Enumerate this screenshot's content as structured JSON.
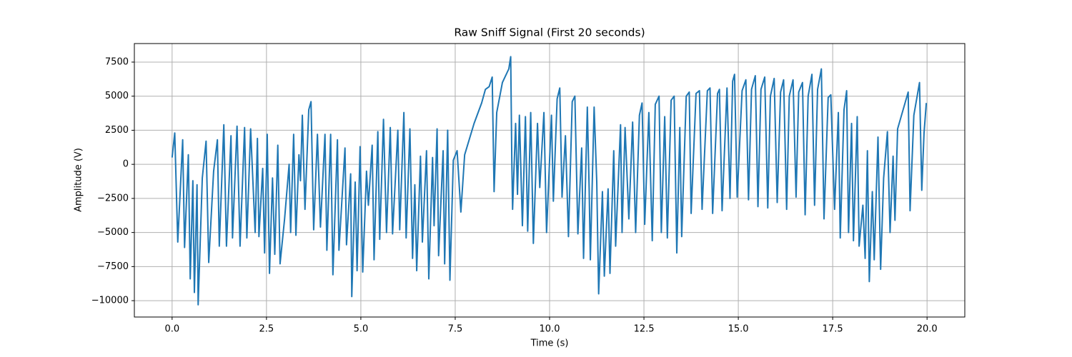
{
  "chart_data": {
    "type": "line",
    "title": "Raw Sniff Signal (First 20 seconds)",
    "x_label": "Time (s)",
    "y_label": "Amplitude (V)",
    "color": "#1f77b4",
    "grid": true,
    "xlim": [
      -1.0,
      21.0
    ],
    "ylim": [
      -11200,
      8860
    ],
    "xticks": [
      {
        "value": 0,
        "label": "0.0"
      },
      {
        "value": 2.5,
        "label": "2.5"
      },
      {
        "value": 5,
        "label": "5.0"
      },
      {
        "value": 7.5,
        "label": "7.5"
      },
      {
        "value": 10,
        "label": "10.0"
      },
      {
        "value": 12.5,
        "label": "12.5"
      },
      {
        "value": 15,
        "label": "15.0"
      },
      {
        "value": 17.5,
        "label": "17.5"
      },
      {
        "value": 20,
        "label": "20.0"
      }
    ],
    "yticks": [
      {
        "value": -10000,
        "label": "−10000"
      },
      {
        "value": -7500,
        "label": "−7500"
      },
      {
        "value": -5000,
        "label": "−5000"
      },
      {
        "value": -2500,
        "label": "−2500"
      },
      0,
      2500,
      5000,
      7500
    ],
    "x": [
      0,
      0.07,
      0.15,
      0.28,
      0.33,
      0.43,
      0.48,
      0.55,
      0.59,
      0.66,
      0.69,
      0.8,
      0.9,
      0.97,
      1.1,
      1.2,
      1.25,
      1.37,
      1.44,
      1.56,
      1.6,
      1.72,
      1.8,
      1.92,
      1.98,
      2.08,
      2.2,
      2.26,
      2.3,
      2.4,
      2.45,
      2.52,
      2.58,
      2.66,
      2.72,
      2.8,
      2.86,
      2.98,
      3.1,
      3.14,
      3.22,
      3.28,
      3.36,
      3.4,
      3.45,
      3.52,
      3.62,
      3.68,
      3.75,
      3.85,
      3.93,
      4.05,
      4.1,
      4.2,
      4.26,
      4.38,
      4.42,
      4.58,
      4.62,
      4.73,
      4.76,
      4.85,
      4.9,
      4.98,
      5.05,
      5.15,
      5.2,
      5.3,
      5.35,
      5.45,
      5.5,
      5.6,
      5.68,
      5.78,
      5.84,
      5.98,
      6.03,
      6.14,
      6.2,
      6.3,
      6.37,
      6.43,
      6.48,
      6.58,
      6.63,
      6.74,
      6.8,
      6.9,
      6.94,
      7.02,
      7.06,
      7.18,
      7.22,
      7.3,
      7.36,
      7.45,
      7.55,
      7.65,
      7.75,
      8.0,
      8.2,
      8.3,
      8.4,
      8.48,
      8.53,
      8.6,
      8.75,
      8.92,
      8.97,
      9.0,
      9.02,
      9.1,
      9.15,
      9.2,
      9.28,
      9.36,
      9.42,
      9.5,
      9.57,
      9.68,
      9.74,
      9.85,
      9.92,
      10.05,
      10.1,
      10.2,
      10.27,
      10.33,
      10.42,
      10.5,
      10.6,
      10.67,
      10.75,
      10.85,
      10.9,
      11.0,
      11.05,
      11.08,
      11.18,
      11.25,
      11.3,
      11.4,
      11.45,
      11.55,
      11.6,
      11.7,
      11.75,
      11.88,
      11.92,
      12.0,
      12.1,
      12.2,
      12.28,
      12.38,
      12.45,
      12.52,
      12.63,
      12.72,
      12.8,
      12.9,
      12.96,
      13.05,
      13.12,
      13.22,
      13.3,
      13.37,
      13.45,
      13.5,
      13.62,
      13.7,
      13.75,
      13.88,
      13.97,
      14.04,
      14.18,
      14.25,
      14.32,
      14.45,
      14.5,
      14.57,
      14.7,
      14.78,
      14.85,
      14.9,
      14.97,
      15.1,
      15.2,
      15.27,
      15.35,
      15.45,
      15.52,
      15.6,
      15.7,
      15.78,
      15.85,
      15.95,
      16.03,
      16.12,
      16.2,
      16.28,
      16.35,
      16.45,
      16.53,
      16.6,
      16.7,
      16.77,
      16.85,
      16.95,
      17.02,
      17.1,
      17.2,
      17.27,
      17.38,
      17.45,
      17.55,
      17.65,
      17.7,
      17.8,
      17.87,
      17.92,
      18.0,
      18.05,
      18.15,
      18.2,
      18.3,
      18.36,
      18.42,
      18.47,
      18.55,
      18.6,
      18.7,
      18.77,
      18.85,
      18.95,
      19.02,
      19.1,
      19.15,
      19.22,
      19.5,
      19.55,
      19.65,
      19.8,
      19.86,
      19.92,
      19.98
    ],
    "values": [
      500,
      2300,
      -5700,
      1800,
      -6100,
      700,
      -8400,
      -1200,
      -9400,
      -1500,
      -10300,
      -1000,
      1700,
      -7200,
      -500,
      1800,
      -6000,
      2900,
      -6000,
      2100,
      -5400,
      2800,
      -6000,
      2700,
      -5400,
      2600,
      -5000,
      1900,
      -5300,
      -300,
      -6500,
      2200,
      -8000,
      -1000,
      -6600,
      1400,
      -7300,
      -4000,
      0,
      -5000,
      2200,
      -5200,
      700,
      -1200,
      3600,
      -3300,
      4000,
      4600,
      -4800,
      2200,
      -4600,
      2200,
      -6300,
      2200,
      -8100,
      1800,
      -6300,
      1200,
      -5900,
      -700,
      -9700,
      -1300,
      -7800,
      1300,
      -7900,
      -500,
      -3000,
      1400,
      -7000,
      2400,
      -5500,
      3300,
      -5000,
      2700,
      -5100,
      2500,
      -4800,
      3800,
      -5400,
      2600,
      -6900,
      -1500,
      -7800,
      600,
      -5700,
      1000,
      -8400,
      500,
      -4500,
      2600,
      -6700,
      1000,
      -7300,
      2500,
      -8500,
      300,
      1000,
      -3500,
      700,
      3000,
      4500,
      5500,
      5700,
      6400,
      -2000,
      3800,
      6000,
      7000,
      7900,
      200,
      -3300,
      3000,
      -2200,
      3600,
      -4500,
      3500,
      -4900,
      3800,
      -5800,
      3000,
      -1700,
      3800,
      -5000,
      3600,
      -2700,
      4800,
      5600,
      -2400,
      2100,
      -5300,
      4600,
      5000,
      -5100,
      1200,
      -6900,
      4200,
      -2000,
      -7000,
      4200,
      -1300,
      -9500,
      -2000,
      -8200,
      -1800,
      -8000,
      1000,
      -6000,
      2900,
      -5000,
      2700,
      -4000,
      3100,
      -5000,
      3600,
      4500,
      -4400,
      3800,
      -5600,
      4400,
      5000,
      -5000,
      3500,
      -5400,
      4700,
      5000,
      -6500,
      2700,
      -5300,
      5000,
      5300,
      -3600,
      5200,
      5400,
      -3300,
      5400,
      5600,
      -3600,
      5200,
      5500,
      -3400,
      5600,
      -2500,
      6100,
      6600,
      -2400,
      5400,
      6200,
      -2600,
      5500,
      6500,
      -3100,
      5500,
      6400,
      -3200,
      5000,
      6300,
      -2800,
      5300,
      6200,
      -3300,
      5000,
      6200,
      -2400,
      5300,
      6000,
      -3700,
      5000,
      6600,
      -3000,
      5500,
      7000,
      -4000,
      4900,
      5100,
      -3300,
      3800,
      -5400,
      4000,
      5400,
      -5000,
      3000,
      -5600,
      3500,
      -6000,
      -3000,
      -6900,
      1000,
      -8600,
      -2000,
      -7000,
      2000,
      -7700,
      -1000,
      2400,
      -5000,
      600,
      -4100,
      2600,
      5300,
      -3400,
      3600,
      6000,
      -1900,
      2300,
      4500
    ]
  }
}
